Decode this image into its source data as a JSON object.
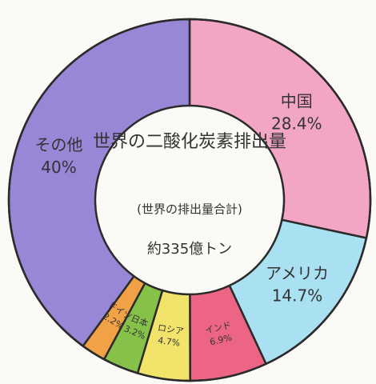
{
  "chart_data": {
    "type": "donut",
    "center_title": "世界の二酸化炭素排出量",
    "center_note": "(世界の排出量合計)",
    "center_total": "約335億トン",
    "categories": [
      "中国",
      "アメリカ",
      "インド",
      "ロシア",
      "日本",
      "ドイツ",
      "その他"
    ],
    "values": [
      28.4,
      14.7,
      6.9,
      4.7,
      3.2,
      2.2,
      40
    ],
    "value_labels": [
      "28.4%",
      "14.7%",
      "6.9%",
      "4.7%",
      "3.2%",
      "2.2%",
      "40%"
    ],
    "colors": [
      "#f2a6c4",
      "#a9e1f2",
      "#ec6585",
      "#f2e36a",
      "#86c24a",
      "#f2a246",
      "#9787d6"
    ]
  }
}
